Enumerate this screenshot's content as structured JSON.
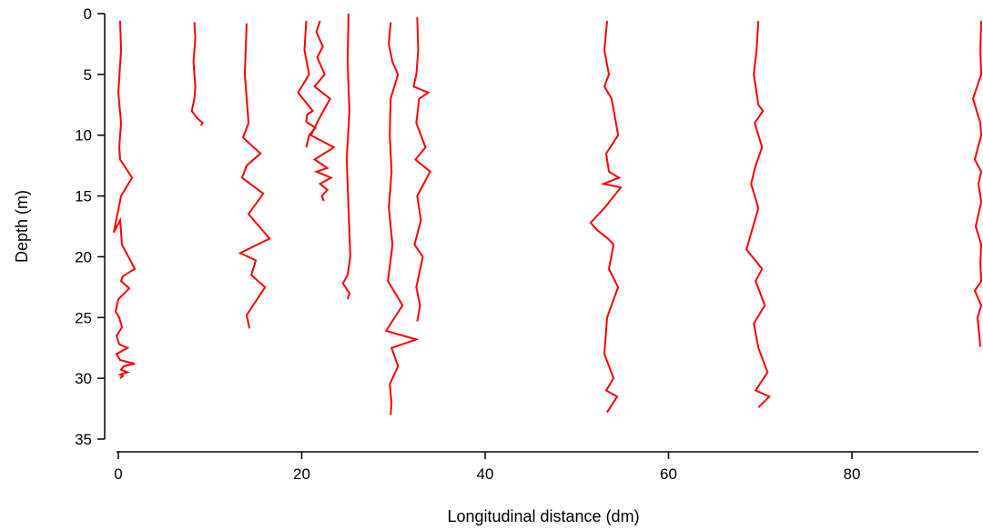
{
  "chart_data": {
    "type": "line",
    "title": "",
    "xlabel": "Longitudinal distance (dm)",
    "ylabel": "Depth (m)",
    "xlim": [
      -1.5,
      95
    ],
    "ylim": [
      0,
      35
    ],
    "y_inverted": true,
    "x_ticks": [
      "0",
      "20",
      "40",
      "60",
      "80"
    ],
    "y_ticks": [
      "0",
      "5",
      "10",
      "15",
      "20",
      "25",
      "30",
      "35"
    ],
    "grid": false,
    "legend": "none",
    "color": "#ff0000",
    "series": [
      {
        "x": [
          0.2,
          0.3,
          0.0,
          0.3,
          0.1,
          0.2,
          1.5,
          0.3,
          -0.5,
          0.2,
          0.4,
          1.8,
          0.5,
          0.3,
          1.2,
          0.0,
          -0.3,
          0.1,
          0.4,
          -0.2,
          0.1,
          1.0,
          -0.2,
          0.2,
          1.8,
          0.6,
          0.3,
          1.0,
          0.2,
          0.5,
          0.2
        ],
        "y": [
          0.6,
          3.0,
          6.5,
          9.0,
          11.0,
          12.0,
          13.5,
          15.0,
          18.0,
          17.0,
          19.0,
          21.0,
          21.6,
          22.0,
          22.6,
          23.5,
          24.5,
          25.0,
          25.8,
          26.5,
          27.2,
          27.5,
          28.0,
          28.5,
          28.8,
          29.0,
          29.3,
          29.5,
          29.7,
          29.8,
          30.0
        ]
      },
      {
        "x": [
          8.3,
          8.4,
          8.2,
          8.4,
          8.3,
          8.0,
          8.6,
          9.2,
          9.0
        ],
        "y": [
          0.7,
          2.0,
          4.0,
          6.0,
          7.0,
          8.0,
          8.6,
          9.0,
          9.2
        ]
      },
      {
        "x": [
          14.0,
          13.8,
          14.2,
          13.6,
          15.5,
          14.0,
          13.5,
          15.8,
          14.2,
          16.5,
          13.3,
          15.0,
          14.5,
          16.0,
          14.0,
          14.3
        ],
        "y": [
          0.8,
          5.0,
          9.0,
          10.2,
          11.5,
          12.5,
          13.5,
          14.8,
          16.5,
          18.5,
          19.7,
          20.3,
          21.5,
          22.5,
          24.8,
          25.9
        ]
      },
      {
        "x": [
          20.5,
          20.3,
          20.8,
          19.6,
          21.2,
          20.6,
          20.5,
          21.5,
          20.8,
          20.5
        ],
        "y": [
          0.6,
          3.0,
          5.0,
          6.5,
          8.0,
          8.3,
          8.9,
          9.4,
          10.0,
          11.0
        ]
      },
      {
        "x": [
          22.0,
          21.6,
          22.3,
          21.7,
          22.5,
          21.4,
          23.1,
          22.0,
          21.0,
          23.5,
          21.4,
          22.8,
          21.6,
          23.2,
          22.0,
          22.8,
          22.2,
          22.4
        ],
        "y": [
          0.6,
          1.5,
          2.7,
          3.6,
          5.0,
          6.0,
          7.0,
          8.5,
          10.0,
          11.0,
          12.0,
          12.7,
          13.0,
          13.5,
          14.0,
          14.5,
          15.0,
          15.4
        ]
      },
      {
        "x": [
          25.1,
          25.0,
          25.2,
          24.9,
          25.1,
          25.3,
          25.0,
          24.5,
          25.2,
          25.0
        ],
        "y": [
          0.0,
          4.0,
          8.0,
          12.0,
          16.0,
          20.0,
          21.5,
          22.2,
          23.0,
          23.5
        ]
      },
      {
        "x": [
          29.7,
          29.5,
          29.9,
          30.5,
          29.7,
          29.6,
          29.8,
          29.5,
          29.9,
          29.4,
          31.0,
          29.2,
          32.5,
          29.8,
          30.5,
          29.6,
          29.8,
          29.7
        ],
        "y": [
          0.7,
          2.5,
          4.0,
          5.0,
          7.0,
          10.0,
          13.0,
          16.0,
          19.0,
          22.0,
          24.0,
          26.1,
          26.8,
          27.5,
          29.0,
          30.5,
          32.0,
          33.0
        ]
      },
      {
        "x": [
          32.6,
          32.7,
          32.5,
          32.2,
          33.8,
          32.8,
          32.5,
          33.5,
          32.4,
          34.0,
          32.6,
          33.0,
          32.3,
          33.2,
          32.5,
          32.9,
          32.6
        ],
        "y": [
          0.3,
          3.0,
          5.0,
          6.0,
          6.5,
          7.0,
          9.0,
          11.0,
          12.0,
          13.0,
          15.0,
          17.0,
          19.0,
          20.0,
          22.5,
          24.0,
          25.3
        ]
      },
      {
        "x": [
          53.3,
          53.0,
          53.5,
          53.0,
          53.8,
          54.5,
          53.2,
          53.5,
          54.6,
          52.9,
          54.8,
          53.0,
          51.5,
          52.2,
          53.4,
          54.0,
          53.5,
          54.5,
          53.3,
          53.0,
          54.0,
          53.2,
          54.4,
          53.3
        ],
        "y": [
          0.6,
          3.0,
          5.0,
          6.0,
          7.0,
          10.0,
          11.5,
          13.0,
          13.5,
          14.0,
          14.3,
          16.0,
          17.2,
          17.8,
          18.5,
          19.0,
          21.0,
          22.5,
          25.0,
          28.0,
          30.0,
          31.0,
          31.5,
          32.8
        ]
      },
      {
        "x": [
          69.8,
          69.6,
          69.3,
          69.8,
          70.3,
          69.4,
          70.2,
          69.5,
          69.0,
          69.8,
          68.5,
          70.2,
          69.5,
          70.5,
          69.3,
          69.8,
          70.8,
          69.5,
          71.0,
          69.8
        ],
        "y": [
          0.6,
          3.0,
          5.0,
          7.5,
          8.0,
          9.0,
          11.0,
          12.5,
          14.0,
          16.0,
          19.4,
          21.0,
          22.0,
          24.0,
          25.5,
          27.5,
          29.5,
          31.0,
          31.5,
          32.4
        ]
      },
      {
        "x": [
          94.3,
          94.0,
          94.6,
          93.2,
          94.0,
          94.5,
          93.4,
          94.5,
          93.8,
          94.4,
          93.5,
          94.2,
          94.0,
          94.6,
          93.4,
          94.2,
          93.7,
          94.0
        ],
        "y": [
          0.6,
          3.0,
          5.0,
          7.0,
          9.0,
          10.0,
          12.0,
          13.0,
          14.0,
          15.5,
          17.5,
          19.0,
          20.5,
          22.0,
          22.8,
          24.0,
          25.0,
          27.4
        ]
      }
    ]
  }
}
